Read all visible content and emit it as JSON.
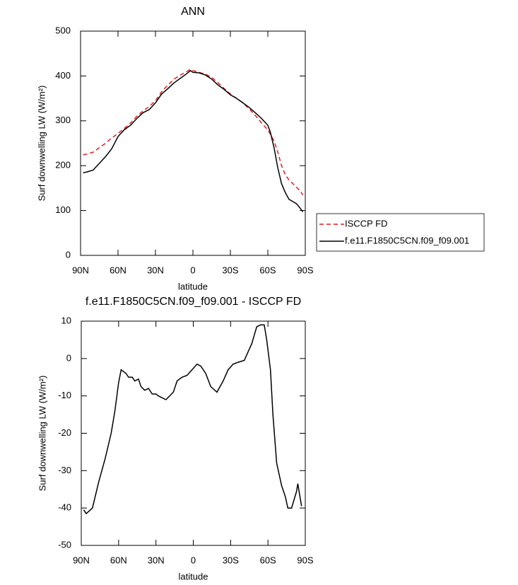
{
  "chart_data": [
    {
      "type": "line",
      "title": "ANN",
      "xlabel": "latitude",
      "ylabel": "Surf downwelling LW (W/m²)",
      "x": [
        88,
        85,
        80,
        75,
        70,
        65,
        60,
        55,
        50,
        45,
        40,
        35,
        30,
        25,
        20,
        15,
        10,
        5,
        2,
        0,
        -5,
        -10,
        -15,
        -20,
        -25,
        -30,
        -35,
        -40,
        -45,
        -50,
        -55,
        -60,
        -62,
        -65,
        -68,
        -71,
        -74,
        -77,
        -80,
        -83,
        -86,
        -88
      ],
      "series": [
        {
          "name": "ISCCP FD",
          "color": "#e8191b",
          "linestyle": "dashed",
          "values": [
            224,
            226,
            230,
            240,
            250,
            262,
            272,
            283,
            295,
            310,
            322,
            332,
            345,
            365,
            380,
            393,
            402,
            410,
            415,
            412,
            408,
            404,
            397,
            385,
            372,
            360,
            350,
            340,
            327,
            312,
            295,
            280,
            270,
            255,
            230,
            200,
            180,
            168,
            160,
            152,
            143,
            135
          ]
        },
        {
          "name": "f.e11.F1850C5CN.f09_f09.001",
          "color": "#000000",
          "linestyle": "solid",
          "values": [
            184,
            186,
            190,
            205,
            220,
            238,
            265,
            280,
            290,
            305,
            318,
            325,
            340,
            360,
            372,
            385,
            395,
            405,
            412,
            408,
            407,
            402,
            393,
            380,
            370,
            358,
            350,
            340,
            330,
            318,
            305,
            290,
            275,
            240,
            195,
            160,
            140,
            125,
            120,
            115,
            105,
            97
          ]
        }
      ],
      "xlim": [
        90,
        -90
      ],
      "xticks": [
        {
          "value": 90,
          "label": "90N"
        },
        {
          "value": 60,
          "label": "60N"
        },
        {
          "value": 30,
          "label": "30N"
        },
        0,
        {
          "value": -30,
          "label": "30S"
        },
        {
          "value": -60,
          "label": "60S"
        },
        {
          "value": -90,
          "label": "90S"
        }
      ],
      "ylim": [
        0,
        500
      ],
      "yticks": [
        0,
        100,
        200,
        300,
        400,
        500
      ],
      "legend": "right"
    },
    {
      "type": "line",
      "title": "f.e11.F1850C5CN.f09_f09.001 - ISCCP FD",
      "xlabel": "latitude",
      "ylabel": "Surf downwelling LW (W/m²)",
      "x": [
        88,
        86,
        81,
        76,
        71,
        66,
        63,
        60,
        58,
        54,
        52,
        49,
        47,
        44,
        42,
        39,
        36,
        33,
        30,
        28,
        22,
        16,
        13,
        9,
        5,
        1,
        -3,
        -6,
        -10,
        -14,
        -19,
        -24,
        -28,
        -32,
        -36,
        -41,
        -43,
        -47,
        -51,
        -54,
        -57,
        -59,
        -62,
        -64,
        -67,
        -71,
        -74,
        -76,
        -79,
        -83,
        -84,
        -87
      ],
      "values": [
        -40.5,
        -41.5,
        -40,
        -33,
        -27,
        -20,
        -14,
        -6.5,
        -3,
        -4,
        -5,
        -5,
        -6,
        -5.5,
        -7.5,
        -8.5,
        -8,
        -9.5,
        -9.5,
        -10,
        -11,
        -9,
        -6,
        -5,
        -4.5,
        -3,
        -1.5,
        -2,
        -4,
        -7.5,
        -9,
        -6,
        -3,
        -1.5,
        -1,
        -0.5,
        1,
        4,
        8.5,
        9,
        9,
        5,
        -3,
        -15,
        -28,
        -34,
        -37,
        -40,
        -40,
        -35.5,
        -33.5,
        -39.5
      ],
      "color": "#000000",
      "xlim": [
        90,
        -90
      ],
      "xticks": [
        {
          "value": 90,
          "label": "90N"
        },
        {
          "value": 60,
          "label": "60N"
        },
        {
          "value": 30,
          "label": "30N"
        },
        0,
        {
          "value": -30,
          "label": "30S"
        },
        {
          "value": -60,
          "label": "60S"
        },
        {
          "value": -90,
          "label": "90S"
        }
      ],
      "ylim": [
        -50,
        10
      ],
      "yticks": [
        -50,
        -40,
        -30,
        -20,
        -10,
        0,
        10
      ]
    }
  ]
}
